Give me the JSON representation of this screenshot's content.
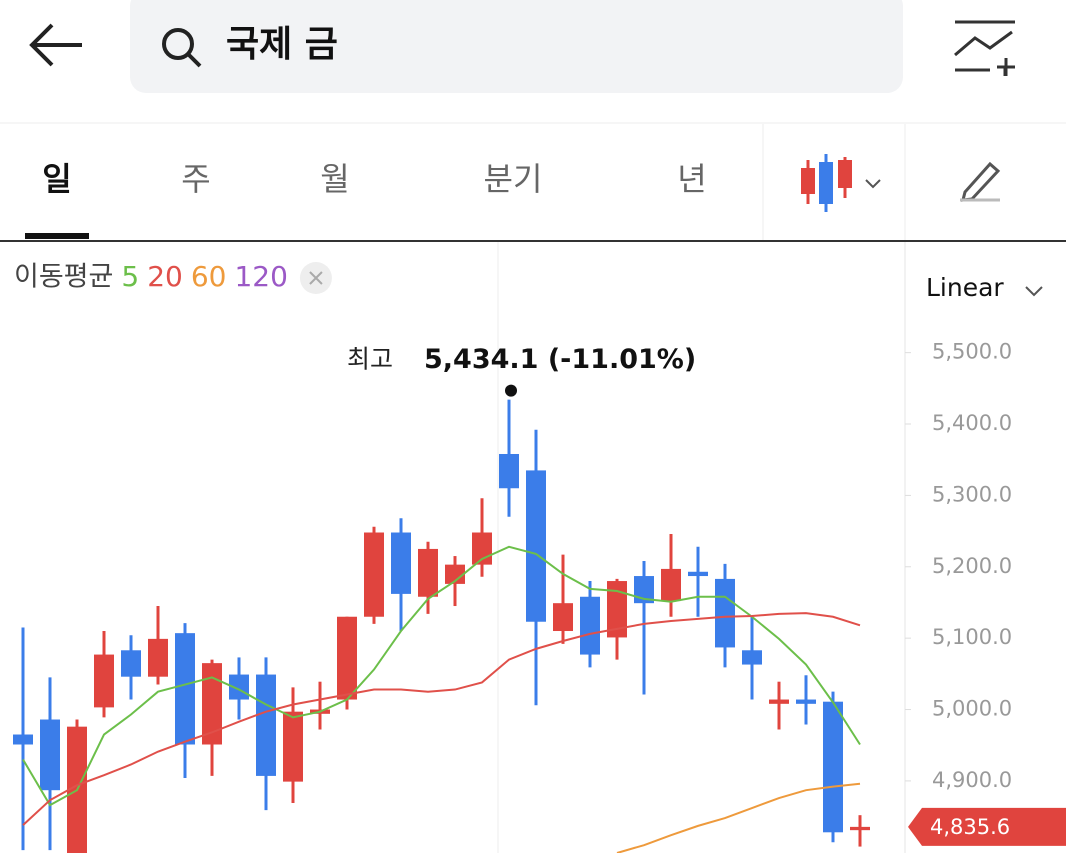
{
  "header": {
    "search_text": "국제 금"
  },
  "tabs": {
    "items": [
      "일",
      "주",
      "월",
      "분기",
      "년"
    ],
    "selected": 0
  },
  "chart_data": {
    "type": "candlestick",
    "legend_title": "이동평균",
    "scale_label": "Linear",
    "up_color": "#e0443e",
    "down_color": "#3b7de9",
    "ylim": [
      4799,
      5655
    ],
    "yticks": [
      {
        "value": 4900,
        "label": "4,900.0"
      },
      {
        "value": 5000,
        "label": "5,000.0"
      },
      {
        "value": 5100,
        "label": "5,100.0"
      },
      {
        "value": 5200,
        "label": "5,200.0"
      },
      {
        "value": 5300,
        "label": "5,300.0"
      },
      {
        "value": 5400,
        "label": "5,400.0"
      },
      {
        "value": 5500,
        "label": "5,500.0"
      }
    ],
    "open": [
      4965,
      4986,
      4799,
      5003,
      5083,
      5046,
      5107,
      4951,
      5049,
      5049,
      4899,
      4994,
      5014,
      5130,
      5248,
      5158,
      5176,
      5203,
      5358,
      5335,
      5110,
      5158,
      5101,
      5187,
      5152,
      5193,
      5183,
      5083,
      5008,
      5014,
      5011,
      4831
    ],
    "high": [
      5115,
      5045,
      4986,
      5110,
      5104,
      5145,
      5121,
      5070,
      5073,
      5073,
      5031,
      5039,
      5130,
      5256,
      5268,
      5235,
      5215,
      5296,
      5434.1,
      5392,
      5217,
      5180,
      5183,
      5208,
      5246,
      5228,
      5204,
      5130,
      5039,
      5048,
      5025,
      4852
    ],
    "low": [
      4803,
      4803,
      4799,
      4989,
      5014,
      5035,
      4904,
      4907,
      4986,
      4859,
      4869,
      4972,
      5000,
      5120,
      5110,
      5134,
      5145,
      5186,
      5270,
      5006,
      5092,
      5059,
      5070,
      5021,
      5130,
      5130,
      5059,
      5014,
      4972,
      4979,
      4814,
      4808
    ],
    "close": [
      4951,
      4887,
      4976,
      5077,
      5046,
      5099,
      4951,
      5065,
      5014,
      4907,
      4997,
      5000,
      5130,
      5248,
      5162,
      5225,
      5203,
      5248,
      5310,
      5123,
      5149,
      5077,
      5180,
      5149,
      5197,
      5187,
      5087,
      5063,
      5014,
      5008,
      4828,
      4835.6
    ],
    "high_annotation": {
      "label": "최고",
      "text": "5,434.1 (-11.01%)",
      "index": 18
    },
    "last_price_label": "4,835.6",
    "series": [
      {
        "name": "5",
        "color": "#6cbf4a",
        "values": [
          4930,
          4866,
          4887,
          4965,
          4993,
          5025,
          5035,
          5045,
          5028,
          5007,
          4989,
          4997,
          5014,
          5056,
          5110,
          5155,
          5180,
          5211,
          5228,
          5218,
          5190,
          5169,
          5166,
          5155,
          5151,
          5158,
          5158,
          5130,
          5099,
          5063,
          5010,
          4951
        ]
      },
      {
        "name": "20",
        "color": "#e0504a",
        "values": [
          4838,
          4873,
          4894,
          4908,
          4923,
          4941,
          4955,
          4968,
          4983,
          4997,
          5007,
          5014,
          5021,
          5028,
          5028,
          5025,
          5028,
          5038,
          5070,
          5085,
          5096,
          5106,
          5113,
          5120,
          5124,
          5127,
          5130,
          5131,
          5134,
          5135,
          5130,
          5118
        ]
      },
      {
        "name": "60",
        "color": "#ee9a3c",
        "values": [
          null,
          null,
          null,
          null,
          null,
          null,
          null,
          null,
          null,
          null,
          null,
          null,
          null,
          null,
          null,
          null,
          null,
          null,
          null,
          null,
          null,
          null,
          4799,
          4810,
          4824,
          4837,
          4848,
          4862,
          4876,
          4887,
          4892,
          4896
        ]
      },
      {
        "name": "120",
        "color": "#9b59c6",
        "values": [
          null,
          null,
          null,
          null,
          null,
          null,
          null,
          null,
          null,
          null,
          null,
          null,
          null,
          null,
          null,
          null,
          null,
          null,
          null,
          null,
          null,
          null,
          null,
          null,
          null,
          null,
          null,
          null,
          null,
          null,
          null,
          null
        ]
      }
    ]
  }
}
